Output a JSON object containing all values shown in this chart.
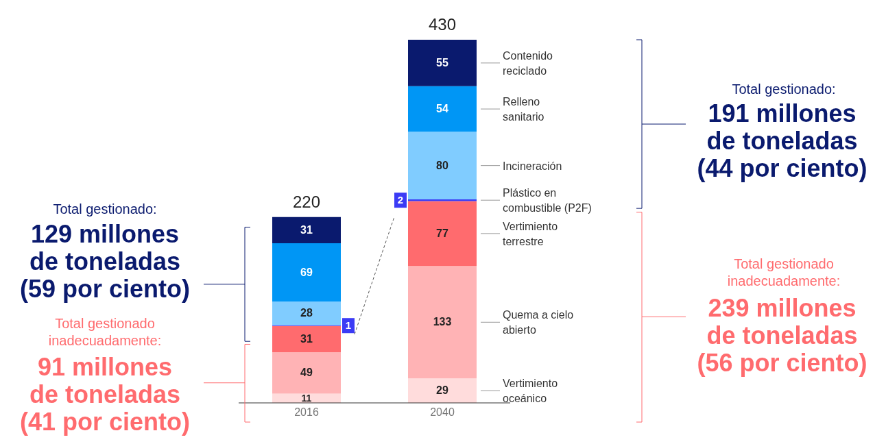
{
  "chart_data": {
    "type": "bar",
    "stacked": true,
    "data_labels": true,
    "tick_labels": "x",
    "categories": [
      "2016",
      "2040"
    ],
    "series": [
      {
        "name": "Vertimiento oceánico",
        "color": "#ffdcdc",
        "values": [
          11,
          29
        ]
      },
      {
        "name": "Quema a cielo abierto",
        "color": "#ffb3b5",
        "values": [
          49,
          133
        ]
      },
      {
        "name": "Vertimiento terrestre",
        "color": "#ff6b6e",
        "values": [
          31,
          77
        ]
      },
      {
        "name": "Plástico en combustible (P2F)",
        "color": "#3b3bf5",
        "values": [
          1,
          2
        ]
      },
      {
        "name": "Incineración",
        "color": "#80ccff",
        "values": [
          28,
          80
        ]
      },
      {
        "name": "Relleno sanitario",
        "color": "#0096f5",
        "values": [
          69,
          54
        ]
      },
      {
        "name": "Contenido reciclado",
        "color": "#0a1a6e",
        "values": [
          31,
          55
        ]
      }
    ],
    "totals": [
      "220",
      "430"
    ],
    "annotations": [
      "Total gestionado:",
      "129 millones de toneladas (59 por ciento)",
      "Total gestionado inadecuadamente:",
      "91 millones de toneladas (41 por ciento)",
      "Total gestionado:",
      "191 millones de toneladas (44 por ciento)",
      "Total gestionado inadecuadamente:",
      "239 millones de toneladas (56 por ciento)"
    ]
  }
}
